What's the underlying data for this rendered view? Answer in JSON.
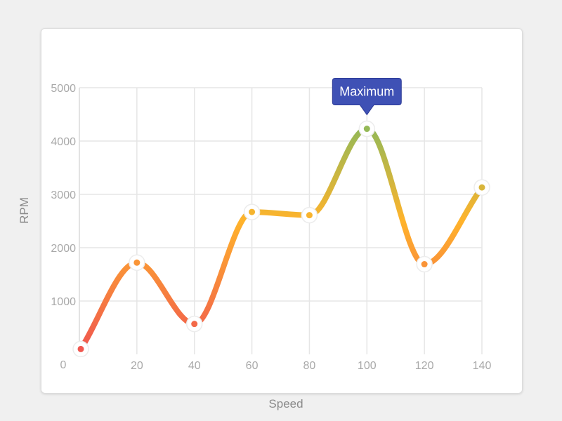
{
  "chart_data": {
    "type": "line",
    "xlabel": "Speed",
    "ylabel": "RPM",
    "xlim": [
      0,
      140
    ],
    "ylim": [
      0,
      5000
    ],
    "x_ticks": [
      "0",
      "20",
      "40",
      "60",
      "80",
      "100",
      "120",
      "140"
    ],
    "y_ticks": [
      "1000",
      "2000",
      "3000",
      "4000",
      "5000"
    ],
    "grid": true,
    "smooth": true,
    "gradient_by_value": true,
    "colors": {
      "low": "#ef5350",
      "mid": "#ffb32b",
      "high": "#66bb6a",
      "tooltip": "#3f51b5"
    },
    "series": [
      {
        "x": [
          0,
          20,
          40,
          60,
          80,
          100,
          120,
          140
        ],
        "values": [
          100,
          1720,
          570,
          2670,
          2610,
          4230,
          1690,
          3130
        ]
      }
    ],
    "annotation": {
      "label": "Maximum",
      "x": 100,
      "y": 4230
    }
  }
}
